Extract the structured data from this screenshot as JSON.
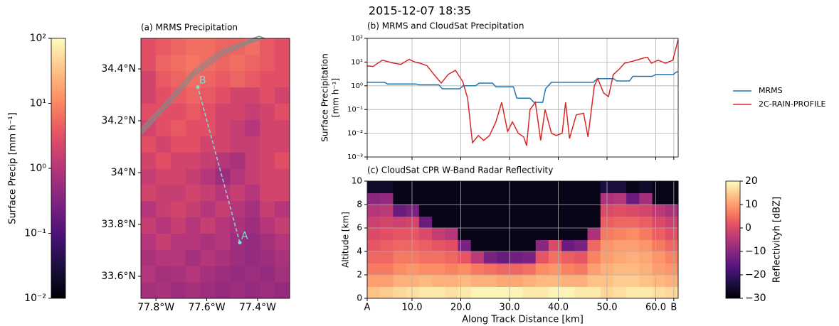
{
  "title": "2015-12-07 18:35",
  "chart_data": [
    {
      "type": "heatmap",
      "title": "(a) MRMS Precipitation",
      "cmap": "magma",
      "log": true,
      "xlim": [
        -77.859,
        -77.274
      ],
      "ylim": [
        33.515,
        34.518
      ],
      "xticks": [
        {
          "value": -77.8,
          "label": "77.8°W"
        },
        {
          "value": -77.6,
          "label": "77.6°W"
        },
        {
          "value": -77.4,
          "label": "77.4°W"
        }
      ],
      "yticks": [
        {
          "value": 33.6,
          "label": "33.6°N"
        },
        {
          "value": 33.8,
          "label": "33.8°N"
        },
        {
          "value": 34.0,
          "label": "34°N"
        },
        {
          "value": 34.2,
          "label": "34.2°N"
        },
        {
          "value": 34.4,
          "label": "34.4°N"
        }
      ],
      "z": [
        [
          0.7,
          0.8,
          0.6,
          0.7,
          0.6,
          0.5,
          0.6,
          0.5,
          0.6,
          0.5
        ],
        [
          1,
          0.7,
          0.8,
          1,
          0.7,
          0.6,
          0.5,
          0.6,
          0.5,
          0.7
        ],
        [
          0.8,
          1,
          1,
          0.7,
          1,
          0.8,
          0.6,
          0.5,
          0.6,
          0.8
        ],
        [
          1,
          1.5,
          1,
          1,
          0.8,
          1,
          0.6,
          0.5,
          0.7,
          1
        ],
        [
          1.5,
          1,
          1.5,
          1,
          1.5,
          1,
          0.8,
          0.6,
          1,
          1.5
        ],
        [
          1,
          1.5,
          2,
          1.5,
          1,
          1.5,
          1,
          0.7,
          1.5,
          1
        ],
        [
          2,
          1.5,
          1.5,
          2,
          1.5,
          1,
          1.5,
          1,
          2,
          2
        ],
        [
          1.5,
          2,
          2,
          1.5,
          1,
          0.6,
          1,
          1.5,
          2,
          2
        ],
        [
          2,
          3,
          2,
          2,
          1.5,
          1,
          0.8,
          1.5,
          2,
          3
        ],
        [
          3,
          2,
          3,
          3,
          2,
          2,
          1.5,
          1.5,
          2,
          2
        ],
        [
          2,
          3,
          4,
          3,
          3,
          2,
          1.5,
          1,
          2,
          2
        ],
        [
          3,
          3,
          3,
          4,
          3,
          2,
          2,
          1.5,
          2,
          3
        ],
        [
          2,
          3,
          4,
          5,
          4,
          3,
          2,
          2,
          3,
          2
        ],
        [
          2,
          4,
          5,
          6,
          5,
          4,
          5,
          4,
          3,
          3
        ],
        [
          3,
          5,
          6,
          7,
          6,
          5,
          6,
          5,
          4,
          3
        ],
        [
          3,
          4,
          5,
          6,
          6,
          5,
          5,
          6,
          4,
          3
        ]
      ],
      "track": {
        "labels": [
          "A",
          "B"
        ],
        "x": [
          -77.47,
          -77.635
        ],
        "y": [
          33.73,
          34.33
        ],
        "color": "#7fe0d0"
      },
      "colorbar": {
        "label": "Surface Precip [mm h⁻¹]",
        "lim": [
          0.01,
          100
        ],
        "ticks": [
          {
            "value": 0.01,
            "label": "10⁻²"
          },
          {
            "value": 0.1,
            "label": "10⁻¹"
          },
          {
            "value": 1,
            "label": "10⁰"
          },
          {
            "value": 10,
            "label": "10¹"
          },
          {
            "value": 100,
            "label": "10²"
          }
        ]
      }
    },
    {
      "type": "line",
      "title": "(b) MRMS and CloudSat Precipitation",
      "ylabel": [
        "Surface Precipitation",
        "[mm h⁻¹]"
      ],
      "log": true,
      "grid": true,
      "legend": "right",
      "xlim": [
        0.8,
        64.6
      ],
      "ylim": [
        0.001,
        100
      ],
      "yticks": [
        {
          "value": 0.001,
          "label": "10⁻³"
        },
        {
          "value": 0.01,
          "label": "10⁻²"
        },
        {
          "value": 0.1,
          "label": "10⁻¹"
        },
        {
          "value": 1,
          "label": "10⁰"
        },
        {
          "value": 10,
          "label": "10¹"
        },
        {
          "value": 100,
          "label": "10²"
        }
      ],
      "series": [
        {
          "name": "MRMS",
          "color": "#1f77b4",
          "x": [
            0.8,
            4.3,
            5,
            10.8,
            11.5,
            15.5,
            16.2,
            19.8,
            20.5,
            23,
            23.8,
            26.5,
            27.2,
            30.8,
            31.5,
            34.2,
            35,
            36.8,
            37.4,
            38.6,
            47.2,
            48,
            51.3,
            52,
            54.6,
            55.3,
            59.3,
            60,
            63.6,
            64.2,
            64.6
          ],
          "values": [
            1.4,
            1.4,
            1.2,
            1.2,
            1.1,
            1.1,
            0.75,
            0.75,
            1.0,
            1.0,
            1.3,
            1.3,
            0.9,
            0.9,
            0.3,
            0.3,
            0.2,
            0.2,
            0.75,
            1.4,
            1.4,
            2.0,
            2.0,
            1.6,
            1.6,
            2.5,
            2.5,
            3.0,
            3.0,
            3.8,
            3.8
          ]
        },
        {
          "name": "2C-RAIN-PROFILE",
          "color": "#d62728",
          "x": [
            0.8,
            2.0,
            3.9,
            6.2,
            7.7,
            9.4,
            10.6,
            11.6,
            13.1,
            14.5,
            16.0,
            17.4,
            18.9,
            20.4,
            21.4,
            22.4,
            23.6,
            24.7,
            25.9,
            27.2,
            28.4,
            29.6,
            30.6,
            31.8,
            32.9,
            33.5,
            34.2,
            35.3,
            36.4,
            37.3,
            38.6,
            39.6,
            40.8,
            41.5,
            42.3,
            43.7,
            45.2,
            46.1,
            47.4,
            48.1,
            49.3,
            50.3,
            51.3,
            52.5,
            53.6,
            55.4,
            57.6,
            58.3,
            59.1,
            60.5,
            62.0,
            63.5,
            64.6
          ],
          "values": [
            7,
            6.5,
            12,
            9,
            8,
            13,
            10,
            9,
            7,
            3,
            1.3,
            3,
            4.5,
            1.5,
            0.3,
            0.004,
            0.008,
            0.005,
            0.008,
            0.03,
            0.2,
            0.012,
            0.03,
            0.01,
            0.007,
            0.003,
            0.1,
            0.2,
            0.005,
            0.1,
            0.01,
            0.008,
            0.01,
            0.2,
            0.006,
            0.06,
            0.07,
            0.007,
            1.0,
            2.0,
            0.5,
            0.35,
            3,
            5,
            9,
            11,
            15,
            16,
            9,
            12,
            9,
            12,
            90
          ]
        }
      ]
    },
    {
      "type": "heatmap",
      "title": "(c) CloudSat CPR W-Band Radar Reflectivity",
      "cmap": "magma",
      "log": false,
      "grid": true,
      "xlabel": "Along Track Distance [km]",
      "ylabel": "Altitude [km]",
      "xlim": [
        0.8,
        64.6
      ],
      "ylim": [
        0,
        10
      ],
      "xticks": [
        {
          "value": 0.8,
          "label": "A"
        },
        {
          "value": 10,
          "label": "10.0"
        },
        {
          "value": 20,
          "label": "20.0"
        },
        {
          "value": 30,
          "label": "30.0"
        },
        {
          "value": 40,
          "label": "40.0"
        },
        {
          "value": 50,
          "label": "50.0"
        },
        {
          "value": 60,
          "label": "60.0"
        },
        {
          "value": 63.7,
          "label": "B"
        }
      ],
      "yticks": [
        0,
        2,
        4,
        6,
        8,
        10
      ],
      "z": [
        [
          14,
          15,
          16,
          17,
          18,
          18,
          17,
          18,
          19,
          19,
          19,
          19,
          18,
          18,
          19,
          19,
          18,
          18,
          16,
          17,
          18,
          18,
          17,
          16
        ],
        [
          10,
          10,
          12,
          12,
          13,
          12,
          12,
          13,
          12,
          12,
          11,
          11,
          12,
          13,
          13,
          12,
          12,
          14,
          14,
          15,
          15,
          14,
          13,
          12
        ],
        [
          6,
          6,
          8,
          9,
          8,
          8,
          7,
          8,
          6,
          5,
          4,
          4,
          5,
          8,
          9,
          7,
          6,
          10,
          12,
          13,
          13,
          12,
          10,
          9
        ],
        [
          4,
          4,
          6,
          6,
          5,
          5,
          4,
          2,
          -4,
          -12,
          -14,
          -13,
          -12,
          2,
          5,
          3,
          2,
          7,
          10,
          11,
          12,
          11,
          9,
          7
        ],
        [
          2,
          3,
          4,
          4,
          3,
          2,
          1,
          -12,
          -28,
          -28,
          -28,
          -28,
          -28,
          -10,
          0,
          -14,
          -12,
          4,
          9,
          10,
          10,
          9,
          6,
          4
        ],
        [
          0,
          1,
          2,
          2,
          0,
          -3,
          -5,
          -28,
          -28,
          -28,
          -28,
          -28,
          -28,
          -28,
          -28,
          -28,
          -28,
          -6,
          6,
          7,
          8,
          6,
          3,
          1
        ],
        [
          -2,
          -1,
          -2,
          -1,
          -14,
          -28,
          -28,
          -28,
          -28,
          -28,
          -28,
          -28,
          -28,
          -28,
          -28,
          -28,
          -28,
          -28,
          3,
          4,
          4,
          3,
          0,
          -2
        ],
        [
          -5,
          -4,
          -14,
          -12,
          -28,
          -28,
          -28,
          -28,
          -28,
          -28,
          -28,
          -28,
          -28,
          -28,
          -28,
          -28,
          -28,
          -28,
          0,
          1,
          0,
          -1,
          -4,
          -6
        ],
        [
          -10,
          -9,
          -28,
          -28,
          -28,
          -28,
          -28,
          -28,
          -28,
          -28,
          -28,
          -28,
          -28,
          -28,
          -28,
          -28,
          -28,
          -28,
          -6,
          -5,
          -14,
          -7,
          -28,
          -28
        ],
        [
          -26,
          -26,
          -28,
          -28,
          -28,
          -28,
          -28,
          -28,
          -28,
          -28,
          -28,
          -28,
          -28,
          -28,
          -28,
          -28,
          -28,
          -28,
          -24,
          -24,
          -28,
          -26,
          -28,
          -28
        ]
      ],
      "colorbar": {
        "label": "Reflectivityh [dBZ]",
        "lim": [
          -30,
          20
        ],
        "ticks": [
          {
            "value": -30,
            "label": "−30"
          },
          {
            "value": -20,
            "label": "−20"
          },
          {
            "value": -10,
            "label": "−10"
          },
          {
            "value": 0,
            "label": "0"
          },
          {
            "value": 10,
            "label": "10"
          },
          {
            "value": 20,
            "label": "20"
          }
        ]
      }
    }
  ]
}
